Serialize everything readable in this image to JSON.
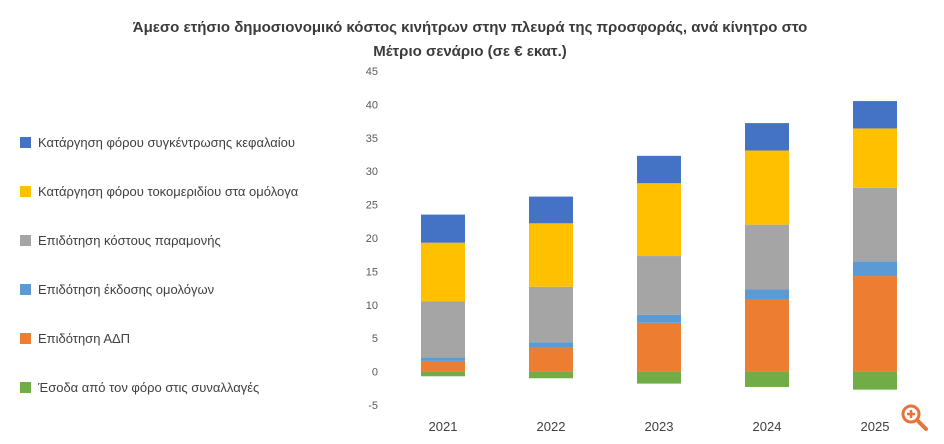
{
  "chart_data": {
    "type": "bar",
    "stacked": true,
    "title_line1": "Άμεσο ετήσιο δημοσιονομικό κόστος κινήτρων στην πλευρά της προσφοράς, ανά κίνητρο στο",
    "title_line2": "Μέτριο σενάριο (σε € εκατ.)",
    "categories": [
      "2021",
      "2022",
      "2023",
      "2024",
      "2025"
    ],
    "ylim": [
      -5,
      45
    ],
    "yticks": [
      -5,
      0,
      5,
      10,
      15,
      20,
      25,
      30,
      35,
      40,
      45
    ],
    "grid": false,
    "legend_position": "left",
    "series": [
      {
        "name": "Έσοδα από τον φόρο στις συναλλαγές",
        "color": "#70ad47",
        "values": [
          -0.7,
          -1.0,
          -1.8,
          -2.3,
          -2.7
        ]
      },
      {
        "name": "Επιδότηση ΑΔΠ",
        "color": "#ed7d31",
        "values": [
          1.6,
          3.6,
          7.3,
          10.8,
          14.3
        ]
      },
      {
        "name": "Επιδότηση έκδοσης ομολόγων",
        "color": "#5b9bd5",
        "values": [
          0.5,
          0.8,
          1.2,
          1.5,
          2.2
        ]
      },
      {
        "name": "Επιδότηση κόστους παραμονής",
        "color": "#a5a5a5",
        "values": [
          8.4,
          8.3,
          8.8,
          9.7,
          11.0
        ]
      },
      {
        "name": "Κατάργηση φόρου τοκομεριδίου στα ομόλογα",
        "color": "#ffc000",
        "values": [
          8.8,
          9.5,
          10.9,
          11.1,
          8.9
        ]
      },
      {
        "name": "Κατάργηση φόρου συγκέντρωσης κεφαλαίου",
        "color": "#4472c4",
        "values": [
          4.2,
          4.0,
          4.1,
          4.1,
          4.1
        ]
      }
    ],
    "legend_order": [
      5,
      4,
      3,
      2,
      1,
      0
    ]
  },
  "ui": {
    "zoom_icon": "zoom-in-icon",
    "zoom_color": "#e8733a"
  }
}
